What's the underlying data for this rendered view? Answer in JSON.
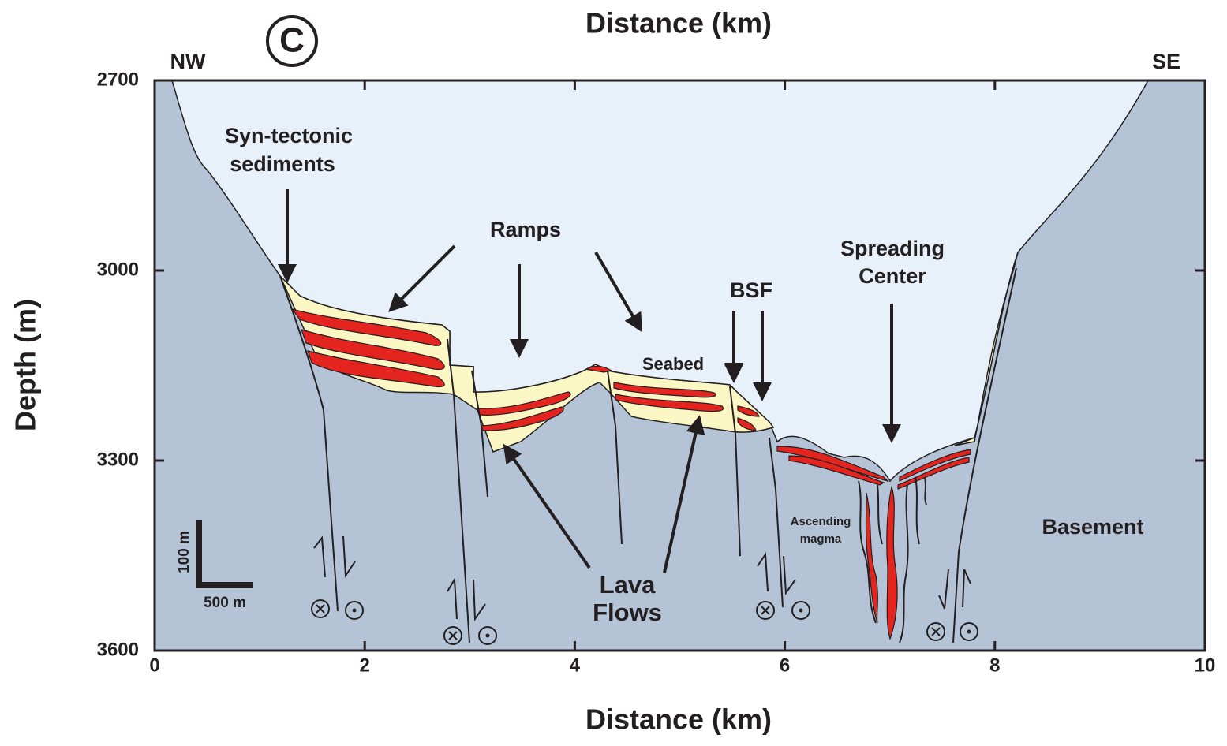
{
  "header": {
    "panel": "C",
    "title": "Distance (km)",
    "left": "NW",
    "right": "SE"
  },
  "axes": {
    "x_label": "Distance (km)",
    "y_label": "Depth (m)",
    "xlim": [
      0,
      10
    ],
    "xticks": [
      0,
      2,
      4,
      6,
      8,
      10
    ],
    "ylim": [
      2700,
      3600
    ],
    "yticks": [
      2700,
      3000,
      3300,
      3600
    ]
  },
  "annotations": {
    "syn_tectonic": [
      "Syn-tectonic",
      "sediments"
    ],
    "ramps": "Ramps",
    "seabed": "Seabed",
    "bsf": "BSF",
    "spreading": [
      "Spreading",
      "Center"
    ],
    "lava": [
      "Lava",
      "Flows"
    ],
    "magma": [
      "Ascending",
      "magma"
    ],
    "basement": "Basement",
    "scale_v": "100 m",
    "scale_h": "500 m"
  }
}
